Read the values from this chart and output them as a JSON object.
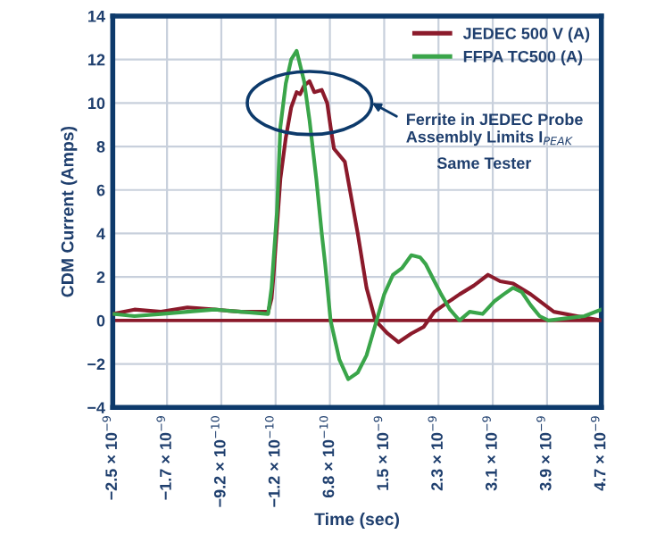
{
  "chart_data": {
    "type": "line",
    "xlabel": "Time (sec)",
    "ylabel": "CDM Current (Amps)",
    "xlim": [
      -2.52e-09,
      4.68e-09
    ],
    "ylim": [
      -4,
      14
    ],
    "yticks": [
      -4,
      -2,
      0,
      2,
      4,
      6,
      8,
      10,
      12,
      14
    ],
    "xticks": [
      {
        "value": -2.52e-09,
        "label": "−2.5 × 10$^{−9}$"
      },
      {
        "value": -1.72e-09,
        "label": "−1.7 × 10$^{−9}$"
      },
      {
        "value": -9.2e-10,
        "label": "−9.2 × 10$^{−10}$"
      },
      {
        "value": -1.2e-10,
        "label": "−1.2 × 10$^{−10}$"
      },
      {
        "value": 6.8e-10,
        "label": "6.8 × 10$^{−10}$"
      },
      {
        "value": 1.48e-09,
        "label": "1.5 × 10$^{−9}$"
      },
      {
        "value": 2.28e-09,
        "label": "2.3 × 10$^{−9}$"
      },
      {
        "value": 3.08e-09,
        "label": "3.1 × 10$^{−9}$"
      },
      {
        "value": 3.88e-09,
        "label": "3.9 × 10$^{−9}$"
      },
      {
        "value": 4.68e-09,
        "label": "4.7 × 10$^{−9}$"
      }
    ],
    "grid": true,
    "legend": "top right",
    "marker": "none",
    "line_style": "solid",
    "ref_lines": [
      {
        "axis": "y",
        "value": 0,
        "color": "#8b1a2b"
      }
    ],
    "annotations": [
      "Ferrite in JEDEC Probe Assembly Limits I$_{PEAK}$",
      "Same Tester"
    ],
    "series": [
      {
        "name": "JEDEC 500 V (A)",
        "color": "#8b1a2b",
        "x": [
          -2.52e-09,
          -2.2e-09,
          -1.81e-09,
          -1.42e-09,
          -1.02e-09,
          -6.3e-10,
          -2.3e-10,
          -1.8e-10,
          -1.5e-10,
          -5e-11,
          3e-11,
          1.1e-10,
          1.9e-10,
          2.4e-10,
          3e-10,
          3.8e-10,
          4.5e-10,
          5.6e-10,
          6.4e-10,
          6.9e-10,
          7.4e-10,
          9e-10,
          1.09e-09,
          1.22e-09,
          1.35e-09,
          1.53e-09,
          1.69e-09,
          1.88e-09,
          2.06e-09,
          2.22e-09,
          2.4e-09,
          2.59e-09,
          2.8e-09,
          3.01e-09,
          3.19e-09,
          3.38e-09,
          3.64e-09,
          3.98e-09,
          4.32e-09,
          4.68e-09
        ],
        "values": [
          0.3,
          0.5,
          0.4,
          0.6,
          0.5,
          0.4,
          0.4,
          1.0,
          2.1,
          6.5,
          8.4,
          9.8,
          10.5,
          10.4,
          10.8,
          11.0,
          10.5,
          10.6,
          10.0,
          8.9,
          7.9,
          7.3,
          4.0,
          1.5,
          0.0,
          -0.6,
          -1.0,
          -0.6,
          -0.3,
          0.4,
          0.8,
          1.2,
          1.6,
          2.1,
          1.8,
          1.7,
          1.2,
          0.4,
          0.2,
          0.0
        ]
      },
      {
        "name": "FFPA TC500 (A)",
        "color": "#3aa54a",
        "x": [
          -2.52e-09,
          -2.2e-09,
          -1.81e-09,
          -1.42e-09,
          -1.02e-09,
          -6.3e-10,
          -2.3e-10,
          -1.8e-10,
          -1e-10,
          -5e-11,
          3e-11,
          1.1e-10,
          1.9e-10,
          3e-10,
          3.8e-10,
          4.8e-10,
          5.6e-10,
          6.1e-10,
          6.9e-10,
          8.2e-10,
          9.5e-10,
          1.09e-09,
          1.22e-09,
          1.35e-09,
          1.48e-09,
          1.61e-09,
          1.74e-09,
          1.88e-09,
          2.01e-09,
          2.09e-09,
          2.22e-09,
          2.32e-09,
          2.45e-09,
          2.59e-09,
          2.74e-09,
          2.93e-09,
          3.11e-09,
          3.24e-09,
          3.38e-09,
          3.51e-09,
          3.64e-09,
          3.77e-09,
          3.9e-09,
          4.17e-09,
          4.43e-09,
          4.68e-09
        ],
        "values": [
          0.3,
          0.2,
          0.3,
          0.4,
          0.5,
          0.4,
          0.3,
          1.5,
          5.0,
          8.9,
          10.9,
          12.0,
          12.4,
          11.0,
          9.2,
          6.5,
          4.0,
          2.6,
          0.0,
          -1.8,
          -2.7,
          -2.4,
          -1.6,
          -0.2,
          1.2,
          2.1,
          2.4,
          3.0,
          2.9,
          2.6,
          1.8,
          1.2,
          0.5,
          0.0,
          0.4,
          0.3,
          0.9,
          1.2,
          1.5,
          1.3,
          0.7,
          0.2,
          0.0,
          0.1,
          0.2,
          0.5
        ]
      }
    ]
  }
}
